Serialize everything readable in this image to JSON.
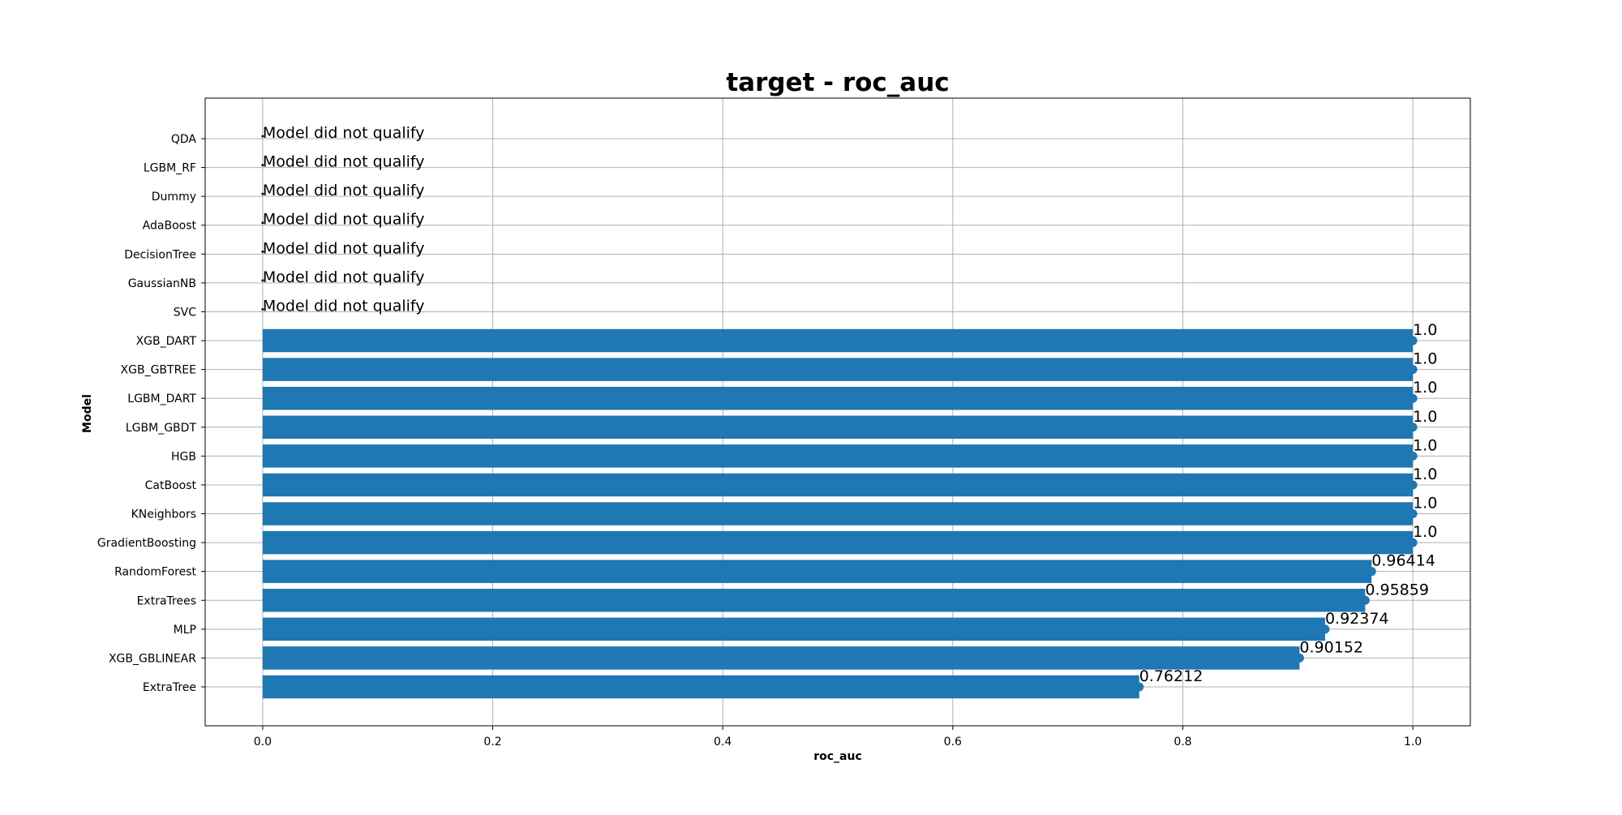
{
  "chart_data": {
    "type": "bar",
    "orientation": "horizontal",
    "title": "target - roc_auc",
    "xlabel": "roc_auc",
    "ylabel": "Model",
    "xlim": [
      -0.05,
      1.05
    ],
    "xticks": [
      "0.0",
      "0.2",
      "0.4",
      "0.6",
      "0.8",
      "1.0"
    ],
    "grid": true,
    "bar_color": "#1f77b4",
    "categories": [
      "QDA",
      "LGBM_RF",
      "Dummy",
      "AdaBoost",
      "DecisionTree",
      "GaussianNB",
      "SVC",
      "XGB_DART",
      "XGB_GBTREE",
      "LGBM_DART",
      "LGBM_GBDT",
      "HGB",
      "CatBoost",
      "KNeighbors",
      "GradientBoosting",
      "RandomForest",
      "ExtraTrees",
      "MLP",
      "XGB_GBLINEAR",
      "ExtraTree"
    ],
    "values": [
      null,
      null,
      null,
      null,
      null,
      null,
      null,
      1.0,
      1.0,
      1.0,
      1.0,
      1.0,
      1.0,
      1.0,
      1.0,
      0.96414,
      0.95859,
      0.92374,
      0.90152,
      0.76212
    ],
    "data_labels": [
      "Model did not qualify",
      "Model did not qualify",
      "Model did not qualify",
      "Model did not qualify",
      "Model did not qualify",
      "Model did not qualify",
      "Model did not qualify",
      "1.0",
      "1.0",
      "1.0",
      "1.0",
      "1.0",
      "1.0",
      "1.0",
      "1.0",
      "0.96414",
      "0.95859",
      "0.92374",
      "0.90152",
      "0.76212"
    ]
  }
}
